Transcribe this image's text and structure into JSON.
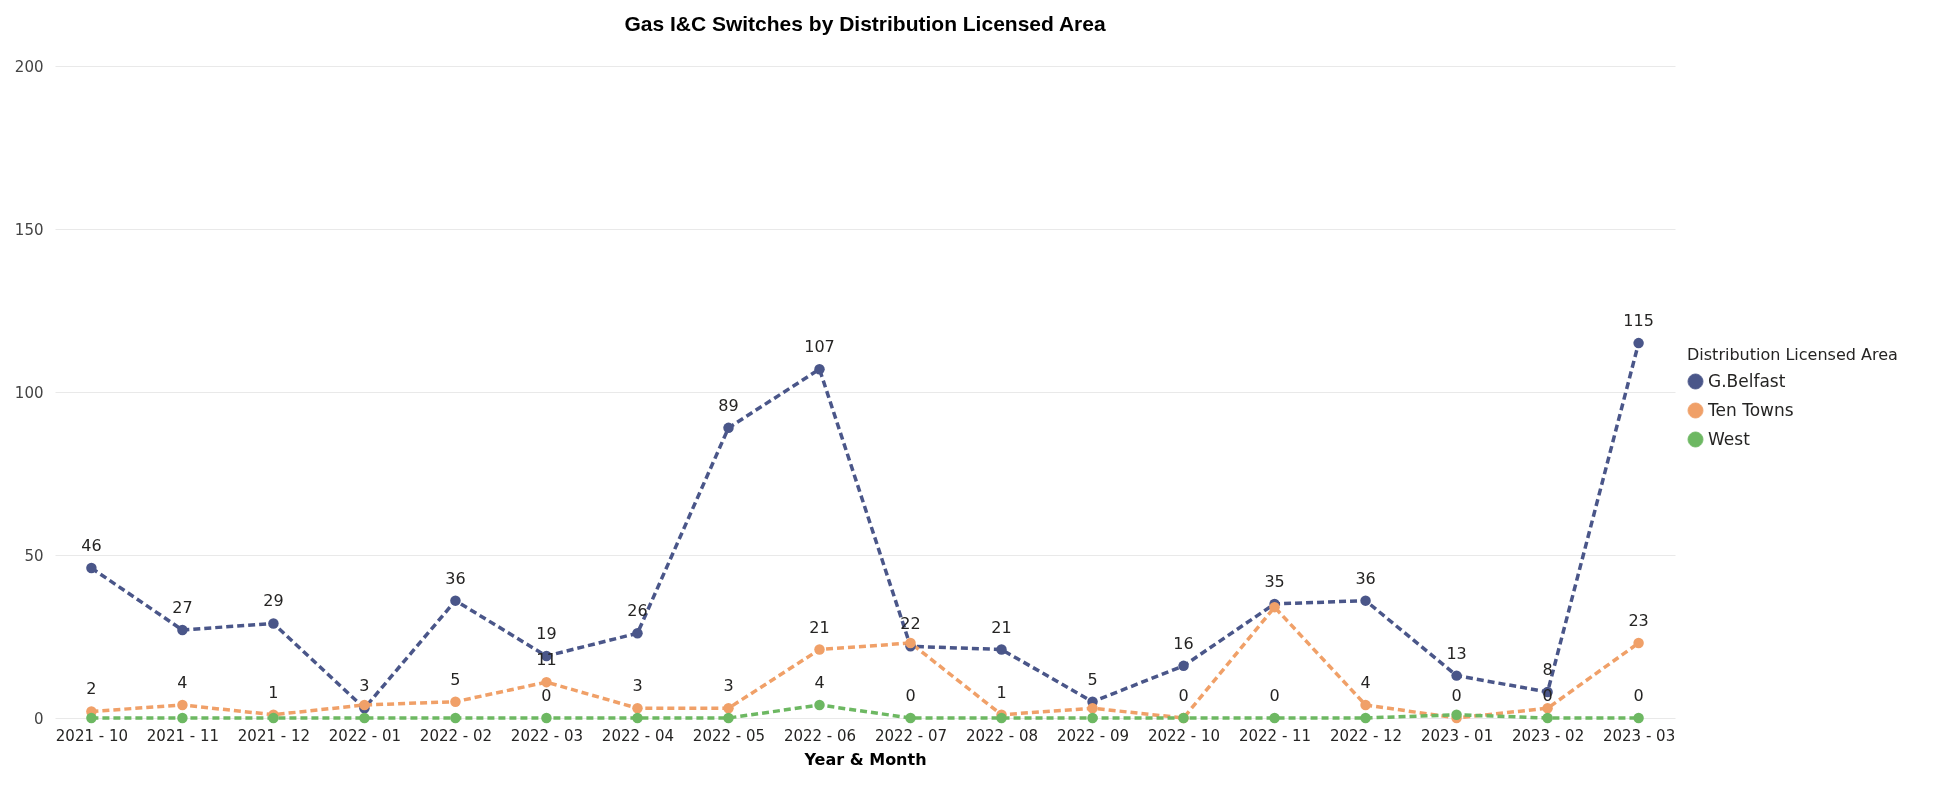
{
  "chart_data": {
    "type": "line",
    "title": "Gas I&C Switches by Distribution Licensed Area",
    "xlabel": "Year & Month",
    "legend_title": "Distribution Licensed Area",
    "categories": [
      "2021 - 10",
      "2021 - 11",
      "2021 - 12",
      "2022 - 01",
      "2022 - 02",
      "2022 - 03",
      "2022 - 04",
      "2022 - 05",
      "2022 - 06",
      "2022 - 07",
      "2022 - 08",
      "2022 - 09",
      "2022 - 10",
      "2022 - 11",
      "2022 - 12",
      "2023 - 01",
      "2023 - 02",
      "2023 - 03"
    ],
    "series": [
      {
        "name": "G.Belfast",
        "color": "#4a5689",
        "values": [
          46,
          27,
          29,
          3,
          36,
          19,
          26,
          89,
          107,
          22,
          21,
          5,
          16,
          35,
          36,
          13,
          8,
          115
        ],
        "value_labels": [
          "46",
          "27",
          "29",
          "3",
          "36",
          "19",
          "26",
          "89",
          "107",
          "22",
          "21",
          "5",
          "16",
          "35",
          "36",
          "13",
          "8",
          "115"
        ]
      },
      {
        "name": "Ten Towns",
        "color": "#f0a068",
        "values": [
          2,
          4,
          1,
          4,
          5,
          11,
          3,
          3,
          21,
          23,
          1,
          3,
          0,
          34,
          4,
          0,
          3,
          23
        ],
        "value_labels": [
          "2",
          "4",
          "1",
          null,
          "5",
          "11",
          "3",
          "3",
          "21",
          null,
          "1",
          null,
          "0",
          null,
          "4",
          "0",
          null,
          "23"
        ]
      },
      {
        "name": "West",
        "color": "#6db862",
        "values": [
          0,
          0,
          0,
          0,
          0,
          0,
          0,
          0,
          4,
          0,
          0,
          0,
          0,
          0,
          0,
          1,
          0,
          0
        ],
        "value_labels": [
          null,
          null,
          null,
          null,
          null,
          "0",
          null,
          null,
          "4",
          "0",
          null,
          null,
          null,
          "0",
          null,
          null,
          "0",
          "0"
        ]
      }
    ],
    "ylim": [
      0,
      200
    ],
    "yticks": [
      0,
      50,
      100,
      150,
      200
    ],
    "grid": "y",
    "legend": "right",
    "marker": "circle",
    "line_style": "dashed"
  }
}
